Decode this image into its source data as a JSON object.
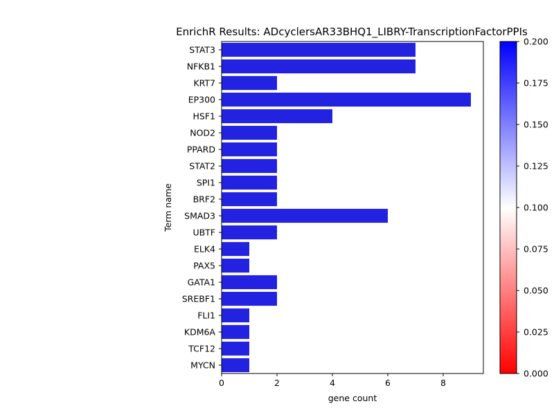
{
  "chart_data": {
    "type": "bar",
    "orientation": "horizontal",
    "title": "EnrichR Results: ADcyclersAR33BHQ1_LIBRY-TranscriptionFactorPPIs",
    "xlabel": "gene count",
    "ylabel": "Term name",
    "xlim": [
      0,
      9.45
    ],
    "xticks": [
      0,
      2,
      4,
      6,
      8
    ],
    "categories": [
      "STAT3",
      "NFKB1",
      "KRT7",
      "EP300",
      "HSF1",
      "NOD2",
      "PPARD",
      "STAT2",
      "SPI1",
      "BRF2",
      "SMAD3",
      "UBTF",
      "ELK4",
      "PAX5",
      "GATA1",
      "SREBF1",
      "FLI1",
      "KDM6A",
      "TCF12",
      "MYCN"
    ],
    "values": [
      7,
      7,
      2,
      9,
      4,
      2,
      2,
      2,
      2,
      2,
      6,
      2,
      1,
      1,
      2,
      2,
      1,
      1,
      1,
      1
    ],
    "bar_color": "#2222e0",
    "grid": false,
    "colorbar": {
      "range": [
        0.0,
        0.2
      ],
      "ticks": [
        "0.000",
        "0.025",
        "0.050",
        "0.075",
        "0.100",
        "0.125",
        "0.150",
        "0.175",
        "0.200"
      ],
      "colors": [
        "#ff0000",
        "#ffffff",
        "#0000ff"
      ]
    }
  }
}
